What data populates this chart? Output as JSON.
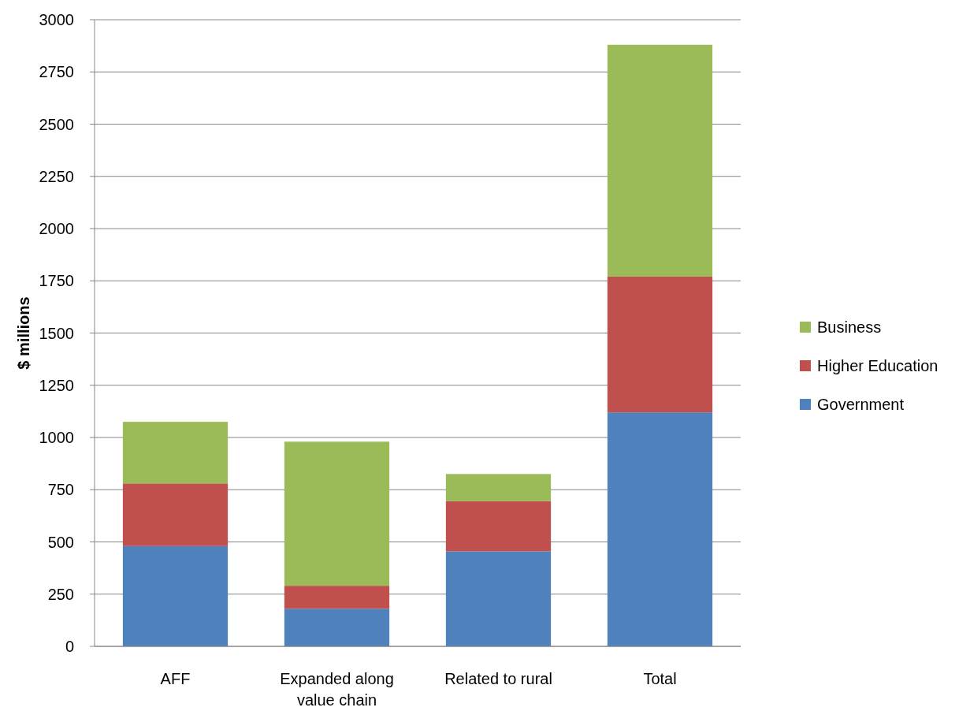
{
  "chart_data": {
    "type": "bar",
    "stacked": true,
    "ylabel": "$ millions",
    "categories": [
      "AFF",
      "Expanded along value chain",
      "Related to rural",
      "Total"
    ],
    "series": [
      {
        "name": "Government",
        "color": "#4f81bd",
        "values": [
          480,
          180,
          455,
          1120
        ]
      },
      {
        "name": "Higher Education",
        "color": "#c0504d",
        "values": [
          300,
          110,
          240,
          650
        ]
      },
      {
        "name": "Business",
        "color": "#9bbb59",
        "values": [
          295,
          690,
          130,
          1110
        ]
      }
    ],
    "ylim": [
      0,
      3000
    ],
    "yticks": [
      0,
      250,
      500,
      750,
      1000,
      1250,
      1500,
      1750,
      2000,
      2250,
      2500,
      2750,
      3000
    ],
    "grid": "y",
    "legend": "right"
  }
}
